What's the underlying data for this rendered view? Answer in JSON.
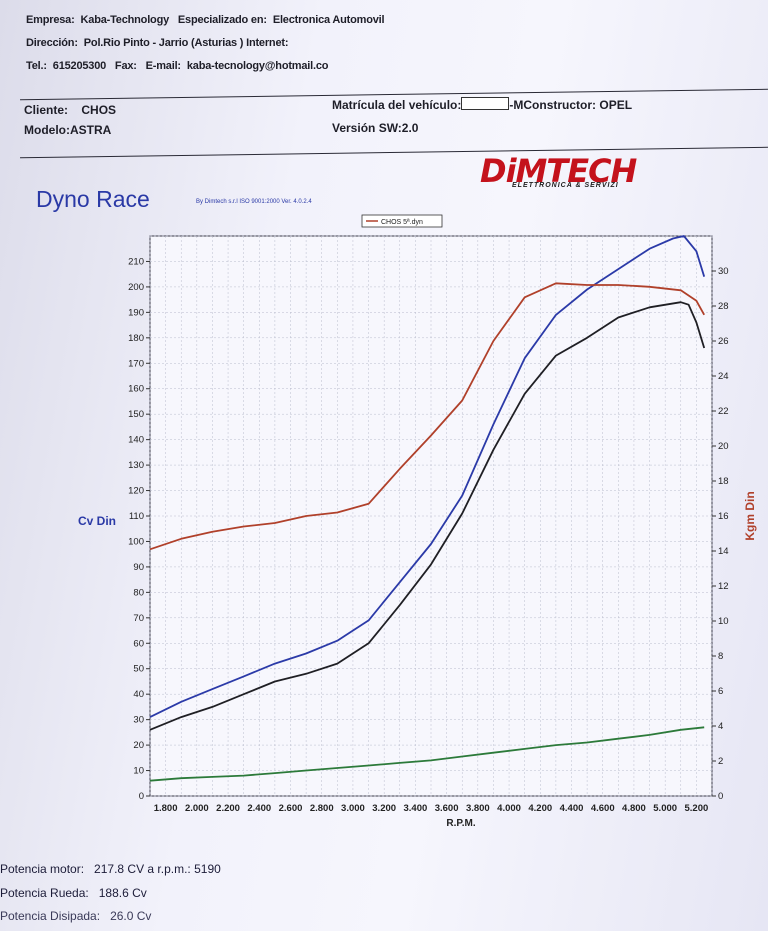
{
  "header": {
    "empresa_label": "Empresa:",
    "empresa_value": "Kaba-Technology",
    "especializado_label": "Especializado en:",
    "especializado_value": "Electronica Automovil",
    "direccion_label": "Dirección:",
    "direccion_value": "Pol.Rio Pinto - Jarrio (Asturias ) Internet:",
    "tel_label": "Tel.:",
    "tel_value": "615205300",
    "fax_label": "Fax:",
    "email_label": "E-mail:",
    "email_value": "kaba-tecnology@hotmail.co"
  },
  "client": {
    "cliente_label": "Cliente:",
    "cliente_value": "CHOS",
    "modelo_label": "Modelo:",
    "modelo_value": "ASTRA",
    "matricula_label": "Matrícula del vehículo:",
    "constructor_label": "-MConstructor:",
    "constructor_value": "OPEL",
    "version_label": "Versión SW:",
    "version_value": "2.0"
  },
  "logo": {
    "main": "DiMTECH",
    "sub": "ELETTRONICA & SERVIZI"
  },
  "title": "Dyno Race",
  "byline": "By Dimtech s.r.l ISO 9001:2000 Ver. 4.0.2.4",
  "chart_data": {
    "type": "line",
    "legend": "CHOS 5ª.dyn",
    "legend_placement": "top-center",
    "xlabel": "R.P.M.",
    "ylabel_left": "Cv Din",
    "ylabel_right": "Kgm Din",
    "x_ticks": [
      "1.800",
      "2.000",
      "2.200",
      "2.400",
      "2.600",
      "2.800",
      "3.000",
      "3.200",
      "3.400",
      "3.600",
      "3.800",
      "4.000",
      "4.200",
      "4.400",
      "4.600",
      "4.800",
      "5.000",
      "5.200"
    ],
    "xlim": [
      1700,
      5300
    ],
    "ylim_left": [
      0,
      220
    ],
    "ylim_right": [
      0,
      32
    ],
    "y_ticks_left": [
      0,
      10,
      20,
      30,
      40,
      50,
      60,
      70,
      80,
      90,
      100,
      110,
      120,
      130,
      140,
      150,
      160,
      170,
      180,
      190,
      200,
      210
    ],
    "y_ticks_right": [
      0,
      2,
      4,
      6,
      8,
      10,
      12,
      14,
      16,
      18,
      20,
      22,
      24,
      26,
      28,
      30
    ],
    "grid": true,
    "series": [
      {
        "color": "#2b3aa8",
        "axis": "left",
        "x": [
          1700,
          1900,
          2100,
          2300,
          2500,
          2700,
          2900,
          3100,
          3300,
          3500,
          3700,
          3900,
          4100,
          4300,
          4500,
          4700,
          4900,
          5050,
          5120,
          5200,
          5250
        ],
        "y": [
          31,
          37,
          42,
          47,
          52,
          56,
          61,
          69,
          84,
          99,
          118,
          146,
          172,
          189,
          199,
          207,
          215,
          219,
          220,
          214,
          204
        ]
      },
      {
        "color": "#1f1f24",
        "axis": "left",
        "x": [
          1700,
          1900,
          2100,
          2300,
          2500,
          2700,
          2900,
          3100,
          3300,
          3500,
          3700,
          3900,
          4100,
          4300,
          4500,
          4700,
          4900,
          5100,
          5150,
          5200,
          5250
        ],
        "y": [
          26,
          31,
          35,
          40,
          45,
          48,
          52,
          60,
          75,
          91,
          111,
          136,
          158,
          173,
          180,
          188,
          192,
          194,
          193,
          186,
          176
        ]
      },
      {
        "color": "#b0402a",
        "axis": "right",
        "x": [
          1700,
          1900,
          2100,
          2300,
          2500,
          2700,
          2900,
          3100,
          3300,
          3500,
          3700,
          3900,
          4100,
          4300,
          4500,
          4700,
          4900,
          5100,
          5200,
          5250
        ],
        "y": [
          14.1,
          14.7,
          15.1,
          15.4,
          15.6,
          16.0,
          16.2,
          16.7,
          18.7,
          20.6,
          22.6,
          26.0,
          28.5,
          29.3,
          29.2,
          29.2,
          29.1,
          28.9,
          28.3,
          27.5
        ]
      },
      {
        "color": "#2c7a3a",
        "axis": "left",
        "x": [
          1700,
          1900,
          2100,
          2300,
          2500,
          2700,
          2900,
          3100,
          3300,
          3500,
          3700,
          3900,
          4100,
          4300,
          4500,
          4700,
          4900,
          5100,
          5250
        ],
        "y": [
          6,
          7,
          7.5,
          8,
          9,
          10,
          11,
          12,
          13,
          14,
          15.5,
          17,
          18.5,
          20,
          21,
          22.5,
          24,
          26,
          27
        ]
      }
    ]
  },
  "footer": {
    "potencia_motor_label": "Potencia motor:",
    "potencia_motor_value": "217.8 CV a r.p.m.: 5190",
    "potencia_rueda_label": "Potencia Rueda:",
    "potencia_rueda_value": "188.6 Cv",
    "potencia_disipada_label": "Potencia Disipada:",
    "potencia_disipada_value": "26.0 Cv"
  }
}
